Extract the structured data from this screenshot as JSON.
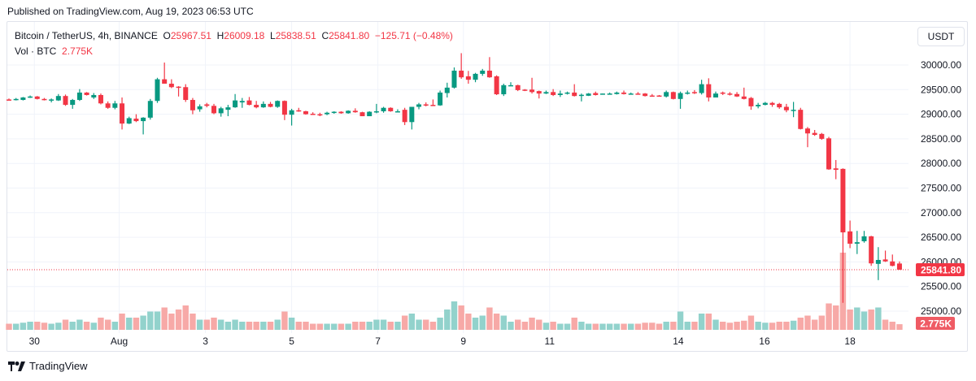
{
  "published": "Published on TradingView.com, Aug 19, 2023 06:53 UTC",
  "legend": {
    "symbol": "Bitcoin / TetherUS, 4h, BINANCE",
    "o_label": "O",
    "o": "25967.51",
    "h_label": "H",
    "h": "26009.18",
    "l_label": "L",
    "l": "25838.51",
    "c_label": "C",
    "c": "25841.80",
    "change": "−125.71 (−0.48%)",
    "vol_label": "Vol · BTC",
    "vol": "2.775K"
  },
  "currency_button": "USDT",
  "logo_text": "TradingView",
  "colors": {
    "up": "#089981",
    "down": "#f23645",
    "up_vol": "#92d2cc",
    "down_vol": "#f7a9a7",
    "grid": "#f0f3fa"
  },
  "chart_data": {
    "type": "candlestick",
    "title": "Bitcoin / TetherUS, 4h, BINANCE",
    "ylim": [
      24600,
      30400
    ],
    "price_ticks": [
      "30000.00",
      "29500.00",
      "29000.00",
      "28500.00",
      "28000.00",
      "27500.00",
      "27000.00",
      "26500.00",
      "26000.00",
      "25500.00",
      "25000.00"
    ],
    "price_tick_values": [
      30000,
      29500,
      29000,
      28500,
      28000,
      27500,
      27000,
      26500,
      26000,
      25500,
      25000
    ],
    "time_ticks": [
      {
        "label": "30",
        "bar": 3.6
      },
      {
        "label": "Aug",
        "bar": 15.6
      },
      {
        "label": "3",
        "bar": 27.8
      },
      {
        "label": "5",
        "bar": 40
      },
      {
        "label": "7",
        "bar": 52.2
      },
      {
        "label": "9",
        "bar": 64.3
      },
      {
        "label": "11",
        "bar": 76.5
      },
      {
        "label": "14",
        "bar": 94.7
      },
      {
        "label": "16",
        "bar": 106.9
      },
      {
        "label": "18",
        "bar": 119
      }
    ],
    "last_price": 25841.8,
    "last_price_label": "25841.80",
    "last_volume_label": "2.775K",
    "volume_unit": "K BTC",
    "candles_ohlcv": [
      [
        29300,
        29320,
        29280,
        29290,
        3
      ],
      [
        29290,
        29330,
        29280,
        29310,
        3
      ],
      [
        29290,
        29350,
        29280,
        29340,
        3.5
      ],
      [
        29340,
        29380,
        29330,
        29360,
        4
      ],
      [
        29360,
        29370,
        29300,
        29310,
        4
      ],
      [
        29310,
        29330,
        29280,
        29290,
        3.5
      ],
      [
        29280,
        29320,
        29240,
        29300,
        3
      ],
      [
        29280,
        29410,
        29270,
        29370,
        3.5
      ],
      [
        29370,
        29400,
        29170,
        29190,
        5
      ],
      [
        29190,
        29310,
        29110,
        29290,
        4
      ],
      [
        29290,
        29510,
        29270,
        29440,
        5
      ],
      [
        29440,
        29450,
        29380,
        29390,
        4
      ],
      [
        29340,
        29430,
        29310,
        29390,
        3.5
      ],
      [
        29390,
        29420,
        29200,
        29220,
        6
      ],
      [
        29220,
        29260,
        29110,
        29130,
        5
      ],
      [
        29130,
        29270,
        29100,
        29220,
        4
      ],
      [
        29220,
        29340,
        28690,
        28810,
        8
      ],
      [
        28810,
        28950,
        28800,
        28920,
        6
      ],
      [
        28910,
        29000,
        28840,
        28860,
        6
      ],
      [
        28860,
        28940,
        28590,
        28930,
        7
      ],
      [
        28930,
        29310,
        28890,
        29270,
        9
      ],
      [
        29270,
        29740,
        29230,
        29710,
        9
      ],
      [
        29710,
        30050,
        29640,
        29620,
        11
      ],
      [
        29620,
        29710,
        29530,
        29550,
        8
      ],
      [
        29560,
        29570,
        29360,
        29550,
        10
      ],
      [
        29550,
        29610,
        29250,
        29290,
        12
      ],
      [
        29290,
        29330,
        29000,
        29080,
        8
      ],
      [
        29100,
        29200,
        29050,
        29160,
        5
      ],
      [
        29200,
        29230,
        29140,
        29170,
        5
      ],
      [
        29170,
        29210,
        29000,
        29020,
        6
      ],
      [
        29020,
        29150,
        28950,
        29120,
        5
      ],
      [
        29090,
        29190,
        28960,
        29140,
        4
      ],
      [
        29140,
        29410,
        29130,
        29280,
        5
      ],
      [
        29240,
        29330,
        29130,
        29270,
        4
      ],
      [
        29280,
        29350,
        29180,
        29190,
        4
      ],
      [
        29190,
        29270,
        29120,
        29140,
        4
      ],
      [
        29140,
        29260,
        29130,
        29210,
        4
      ],
      [
        29210,
        29250,
        29140,
        29150,
        4
      ],
      [
        29150,
        29280,
        29130,
        29270,
        5
      ],
      [
        29270,
        29280,
        28880,
        28990,
        9
      ],
      [
        28990,
        29110,
        28770,
        29080,
        6
      ],
      [
        29080,
        29130,
        29050,
        29060,
        4
      ],
      [
        29060,
        29070,
        28990,
        29000,
        4
      ],
      [
        29010,
        29040,
        28990,
        29000,
        3
      ],
      [
        29000,
        29030,
        28960,
        28990,
        3
      ],
      [
        29000,
        29050,
        28980,
        29030,
        3
      ],
      [
        29030,
        29060,
        29010,
        29050,
        3
      ],
      [
        29050,
        29060,
        29010,
        29020,
        3
      ],
      [
        29020,
        29080,
        29010,
        29070,
        3
      ],
      [
        29070,
        29120,
        29030,
        29040,
        4
      ],
      [
        29040,
        29050,
        28960,
        28960,
        4
      ],
      [
        28960,
        29060,
        28960,
        29050,
        4
      ],
      [
        29050,
        29210,
        29020,
        29060,
        5
      ],
      [
        29060,
        29150,
        29030,
        29130,
        5
      ],
      [
        29130,
        29140,
        29050,
        29060,
        4
      ],
      [
        29060,
        29100,
        29040,
        29060,
        4
      ],
      [
        29090,
        29130,
        28780,
        28840,
        7
      ],
      [
        28840,
        29130,
        28690,
        29150,
        8
      ],
      [
        29150,
        29230,
        29100,
        29200,
        5
      ],
      [
        29200,
        29240,
        29160,
        29180,
        5
      ],
      [
        29190,
        29300,
        29170,
        29180,
        4
      ],
      [
        29180,
        29480,
        29170,
        29440,
        6
      ],
      [
        29430,
        29640,
        29340,
        29540,
        10
      ],
      [
        29540,
        29950,
        29520,
        29885,
        14
      ],
      [
        29885,
        30240,
        29720,
        29750,
        12
      ],
      [
        29770,
        29880,
        29620,
        29700,
        8
      ],
      [
        29700,
        29840,
        29650,
        29820,
        6
      ],
      [
        29820,
        29920,
        29780,
        29885,
        7
      ],
      [
        29885,
        30160,
        29740,
        29750,
        11
      ],
      [
        29770,
        29790,
        29390,
        29405,
        8
      ],
      [
        29405,
        29620,
        29370,
        29590,
        7
      ],
      [
        29580,
        29650,
        29570,
        29590,
        4
      ],
      [
        29590,
        29600,
        29470,
        29490,
        5
      ],
      [
        29500,
        29510,
        29470,
        29490,
        4
      ],
      [
        29500,
        29740,
        29420,
        29450,
        6
      ],
      [
        29470,
        29480,
        29320,
        29420,
        5
      ],
      [
        29420,
        29480,
        29410,
        29450,
        3.5
      ],
      [
        29450,
        29510,
        29370,
        29390,
        4
      ],
      [
        29390,
        29480,
        29350,
        29420,
        3
      ],
      [
        29420,
        29460,
        29400,
        29440,
        3
      ],
      [
        29440,
        29610,
        29360,
        29370,
        6
      ],
      [
        29390,
        29420,
        29260,
        29395,
        4
      ],
      [
        29375,
        29430,
        29370,
        29420,
        3
      ],
      [
        29430,
        29460,
        29380,
        29390,
        3
      ],
      [
        29400,
        29420,
        29400,
        29420,
        3
      ],
      [
        29410,
        29440,
        29400,
        29420,
        3
      ],
      [
        29410,
        29460,
        29400,
        29440,
        3
      ],
      [
        29440,
        29480,
        29400,
        29410,
        3
      ],
      [
        29410,
        29440,
        29400,
        29420,
        3
      ],
      [
        29420,
        29450,
        29400,
        29410,
        3
      ],
      [
        29420,
        29430,
        29360,
        29370,
        3.5
      ],
      [
        29380,
        29410,
        29360,
        29370,
        3.5
      ],
      [
        29380,
        29390,
        29360,
        29370,
        3
      ],
      [
        29360,
        29480,
        29340,
        29450,
        4
      ],
      [
        29450,
        29460,
        29300,
        29310,
        4
      ],
      [
        29310,
        29460,
        29110,
        29430,
        9
      ],
      [
        29420,
        29480,
        29400,
        29440,
        4
      ],
      [
        29450,
        29490,
        29410,
        29430,
        4
      ],
      [
        29430,
        29700,
        29400,
        29610,
        8
      ],
      [
        29610,
        29730,
        29260,
        29340,
        8
      ],
      [
        29340,
        29460,
        29340,
        29420,
        5
      ],
      [
        29440,
        29460,
        29390,
        29420,
        4
      ],
      [
        29420,
        29450,
        29380,
        29410,
        3.5
      ],
      [
        29410,
        29450,
        29350,
        29360,
        4
      ],
      [
        29360,
        29540,
        29300,
        29310,
        4.5
      ],
      [
        29330,
        29350,
        29090,
        29160,
        7
      ],
      [
        29160,
        29230,
        29120,
        29190,
        4
      ],
      [
        29190,
        29250,
        29180,
        29230,
        3.5
      ],
      [
        29230,
        29250,
        29150,
        29190,
        3.5
      ],
      [
        29210,
        29230,
        29110,
        29140,
        4
      ],
      [
        29150,
        29210,
        29040,
        29080,
        4
      ],
      [
        29080,
        29250,
        28940,
        29090,
        4.5
      ],
      [
        29090,
        29130,
        28690,
        28700,
        6
      ],
      [
        28710,
        28740,
        28330,
        28610,
        7
      ],
      [
        28620,
        28680,
        28560,
        28580,
        5
      ],
      [
        28600,
        28620,
        28480,
        28500,
        7
      ],
      [
        28510,
        28540,
        27870,
        27880,
        13
      ],
      [
        27900,
        28070,
        27680,
        27870,
        12
      ],
      [
        27890,
        27900,
        25170,
        26600,
        38
      ],
      [
        26620,
        26840,
        26280,
        26370,
        10
      ],
      [
        26370,
        26630,
        26160,
        26400,
        11
      ],
      [
        26420,
        26630,
        26390,
        26520,
        9
      ],
      [
        26520,
        26530,
        25920,
        25970,
        10
      ],
      [
        25960,
        26300,
        25630,
        26040,
        11
      ],
      [
        26050,
        26230,
        26000,
        26010,
        5
      ],
      [
        26010,
        26150,
        25910,
        25920,
        4
      ],
      [
        25967.51,
        26009.18,
        25838.51,
        25841.8,
        2.775
      ]
    ]
  }
}
